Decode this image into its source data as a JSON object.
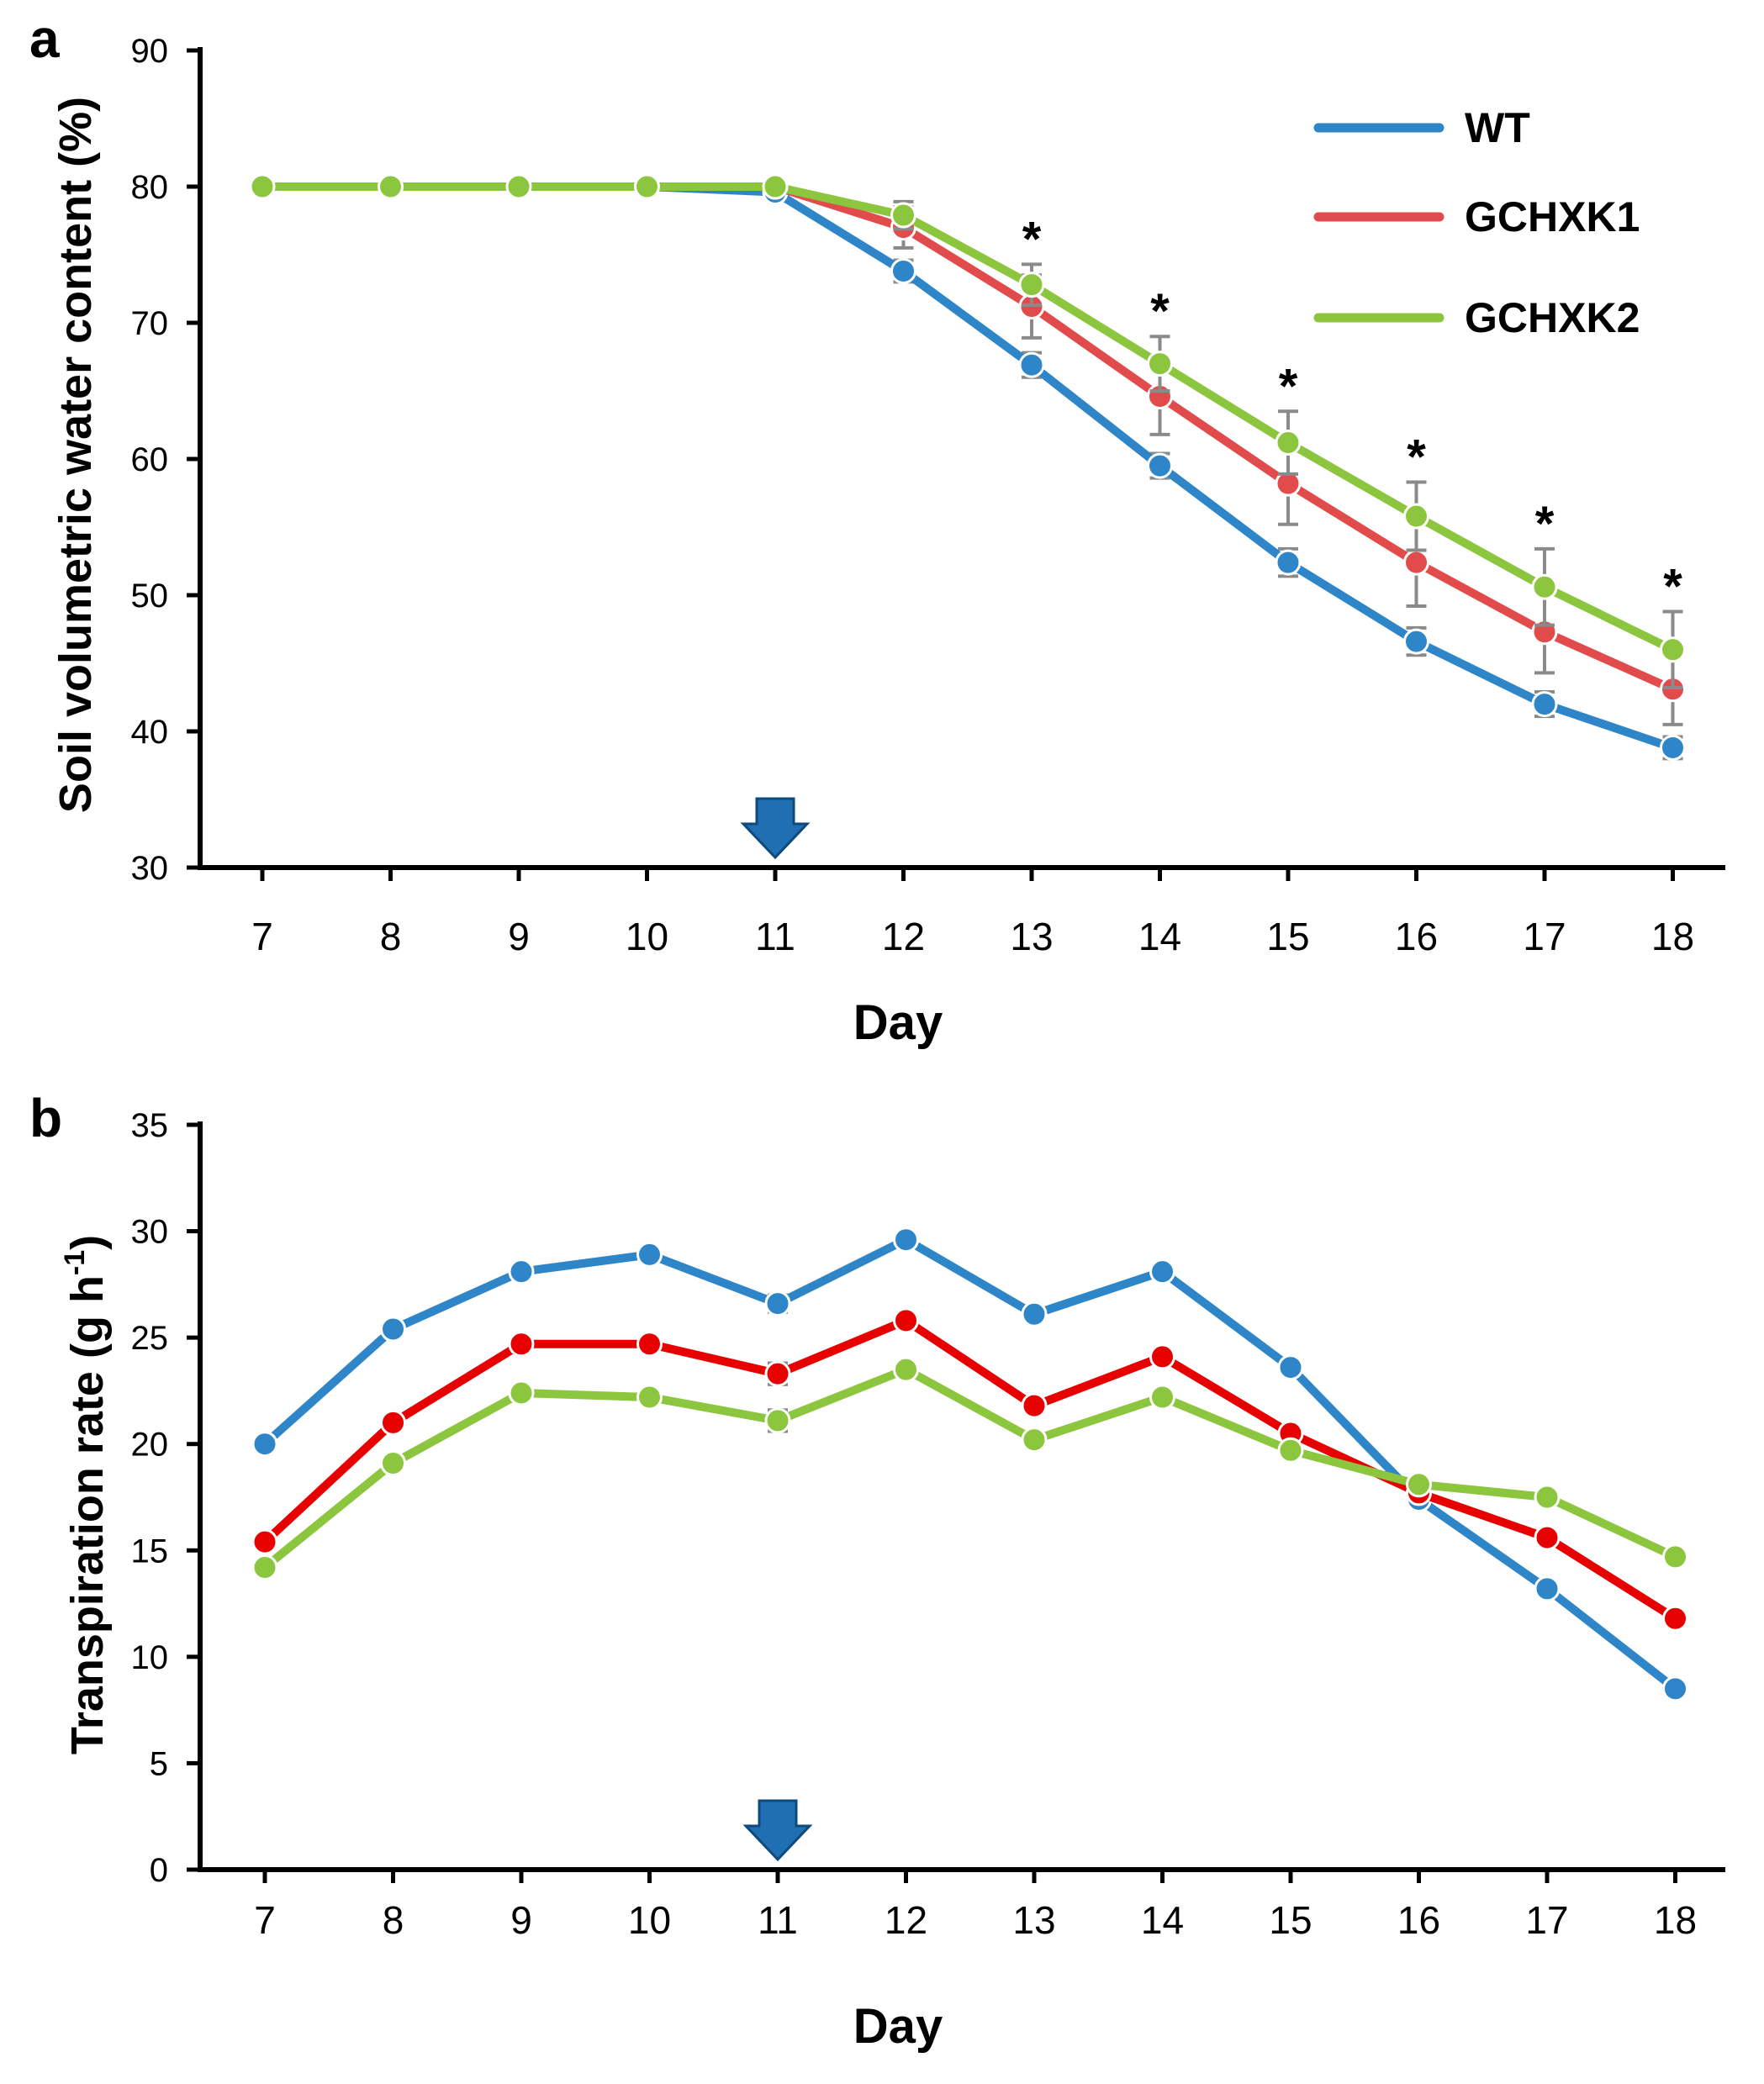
{
  "chart_data": [
    {
      "type": "line",
      "panel": "a",
      "title": "",
      "xlabel": "Day",
      "ylabel": "Soil volumetric water content (%)",
      "categories": [
        "7",
        "8",
        "9",
        "10",
        "11",
        "12",
        "13",
        "14",
        "15",
        "16",
        "17",
        "18"
      ],
      "ylim": [
        30,
        90
      ],
      "yticks": [
        30,
        40,
        50,
        60,
        70,
        80,
        90
      ],
      "grid": false,
      "legend": "top-right",
      "series": [
        {
          "name": "WT",
          "color": "#2e86c8",
          "values": [
            80,
            80,
            80,
            80,
            79.6,
            73.8,
            66.9,
            59.5,
            52.4,
            46.6,
            42.0,
            38.8
          ],
          "errors": [
            0,
            0,
            0,
            0,
            0.3,
            0.8,
            0.9,
            0.9,
            1.0,
            1.0,
            0.9,
            0.8
          ]
        },
        {
          "name": "GCHXK1",
          "color": "#e24b4b",
          "values": [
            80,
            80,
            80,
            80,
            80,
            77.0,
            71.2,
            64.6,
            58.2,
            52.4,
            47.3,
            43.1
          ],
          "errors": [
            0,
            0,
            0,
            0,
            0,
            1.5,
            2.3,
            2.8,
            3.0,
            3.2,
            3.0,
            2.6
          ]
        },
        {
          "name": "GCHXK2",
          "color": "#8cc63f",
          "values": [
            80,
            80,
            80,
            80,
            80,
            77.9,
            72.8,
            67.0,
            61.2,
            55.8,
            50.6,
            46.0
          ],
          "errors": [
            0,
            0,
            0,
            0,
            0,
            1.0,
            1.5,
            2.0,
            2.3,
            2.5,
            2.8,
            2.8
          ]
        }
      ],
      "annotations": [
        {
          "x": "13",
          "text": "*"
        },
        {
          "x": "14",
          "text": "*"
        },
        {
          "x": "15",
          "text": "*"
        },
        {
          "x": "16",
          "text": "*"
        },
        {
          "x": "17",
          "text": "*"
        },
        {
          "x": "18",
          "text": "*"
        }
      ],
      "arrow_at": "11"
    },
    {
      "type": "line",
      "panel": "b",
      "title": "",
      "xlabel": "Day",
      "ylabel": "Transpiration rate (g h",
      "ylabel_sup": "-1",
      "ylabel_end": ")",
      "categories": [
        "7",
        "8",
        "9",
        "10",
        "11",
        "12",
        "13",
        "14",
        "15",
        "16",
        "17",
        "18"
      ],
      "ylim": [
        0,
        35
      ],
      "yticks": [
        0,
        5,
        10,
        15,
        20,
        25,
        30,
        35
      ],
      "grid": false,
      "legend": "none",
      "series": [
        {
          "name": "WT",
          "color": "#2e86c8",
          "values": [
            20.0,
            25.4,
            28.1,
            28.9,
            26.6,
            29.6,
            26.1,
            28.1,
            23.6,
            17.4,
            13.2,
            8.5
          ],
          "errors": [
            0,
            0.2,
            0.2,
            0.2,
            0.4,
            0.3,
            0.3,
            0.2,
            0.2,
            0.2,
            0.2,
            0.2
          ]
        },
        {
          "name": "GCHXK1",
          "color": "#e60000",
          "values": [
            15.4,
            21.0,
            24.7,
            24.7,
            23.3,
            25.8,
            21.8,
            24.1,
            20.5,
            17.7,
            15.6,
            11.8
          ],
          "errors": [
            0,
            0.3,
            0.2,
            0.2,
            0.5,
            0.3,
            0.3,
            0.2,
            0.2,
            0.2,
            0.2,
            0.2
          ]
        },
        {
          "name": "GCHXK2",
          "color": "#8cc63f",
          "values": [
            14.2,
            19.1,
            22.4,
            22.2,
            21.1,
            23.5,
            20.2,
            22.2,
            19.7,
            18.1,
            17.5,
            14.7
          ],
          "errors": [
            0,
            0.3,
            0.2,
            0.2,
            0.5,
            0.3,
            0.3,
            0.2,
            0.2,
            0.2,
            0.2,
            0.2
          ]
        }
      ],
      "arrow_at": "11"
    }
  ]
}
